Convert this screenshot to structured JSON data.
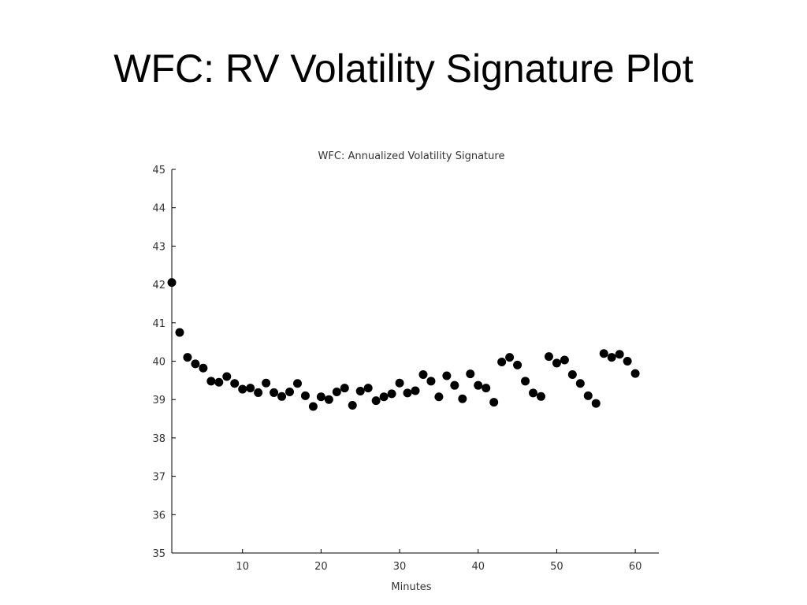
{
  "slide": {
    "title": "WFC: RV Volatility Signature Plot"
  },
  "chart_data": {
    "type": "scatter",
    "title": "WFC: Annualized Volatility Signature",
    "xlabel": "Minutes",
    "ylabel": "",
    "xlim": [
      1,
      63
    ],
    "ylim": [
      35,
      45
    ],
    "xticks": [
      10,
      20,
      30,
      40,
      50,
      60
    ],
    "yticks": [
      35,
      36,
      37,
      38,
      39,
      40,
      41,
      42,
      43,
      44,
      45
    ],
    "grid": false,
    "marker_color": "#000000",
    "x": [
      1,
      2,
      3,
      4,
      5,
      6,
      7,
      8,
      9,
      10,
      11,
      12,
      13,
      14,
      15,
      16,
      17,
      18,
      19,
      20,
      21,
      22,
      23,
      24,
      25,
      26,
      27,
      28,
      29,
      30,
      31,
      32,
      33,
      34,
      35,
      36,
      37,
      38,
      39,
      40,
      41,
      42,
      43,
      44,
      45,
      46,
      47,
      48,
      49,
      50,
      51,
      52,
      53,
      54,
      55,
      56,
      57,
      58,
      59,
      60
    ],
    "y": [
      42.05,
      40.75,
      40.1,
      39.93,
      39.82,
      39.48,
      39.45,
      39.6,
      39.42,
      39.27,
      39.3,
      39.18,
      39.43,
      39.18,
      39.08,
      39.2,
      39.42,
      39.1,
      38.82,
      39.07,
      39.0,
      39.2,
      39.3,
      38.85,
      39.22,
      39.3,
      38.97,
      39.07,
      39.15,
      39.43,
      39.17,
      39.23,
      39.65,
      39.48,
      39.07,
      39.62,
      39.37,
      39.02,
      39.67,
      39.37,
      39.3,
      38.93,
      39.98,
      40.1,
      39.9,
      39.48,
      39.17,
      39.08,
      40.12,
      39.95,
      40.03,
      39.65,
      39.42,
      39.1,
      38.9,
      40.2,
      40.1,
      40.18,
      40.0,
      39.68
    ]
  }
}
